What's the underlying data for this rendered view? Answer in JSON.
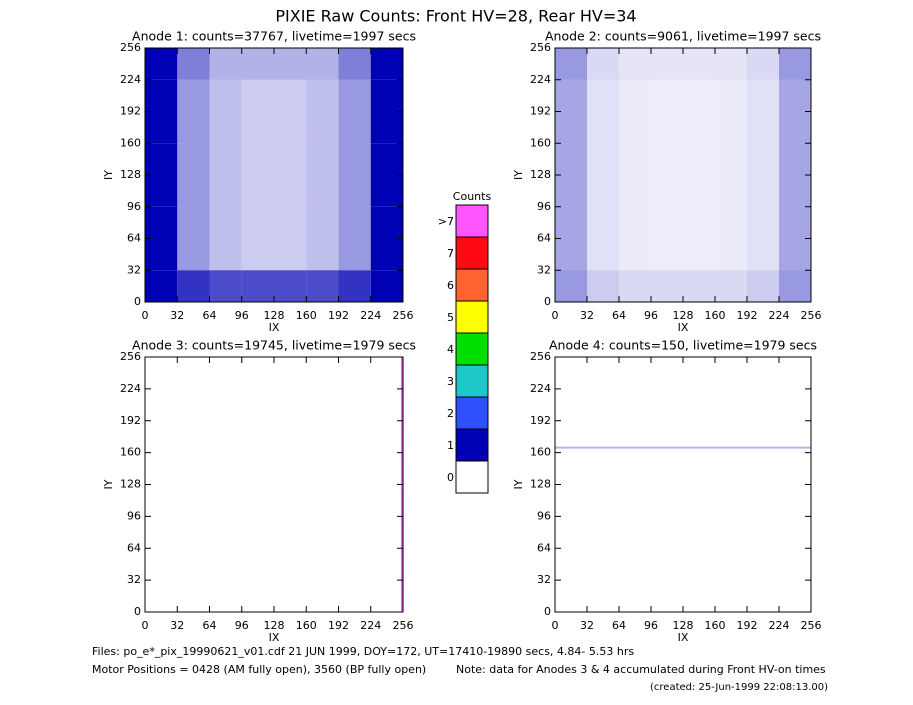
{
  "title": "PIXIE Raw Counts:  Front HV=28, Rear HV=34",
  "chart_data": [
    {
      "type": "heatmap",
      "title": "Anode 1: counts=37767, livetime=1997 secs",
      "x_label": "IX",
      "y_label": "IY",
      "xbins": [
        0,
        32,
        64,
        96,
        128,
        160,
        192,
        224,
        256
      ],
      "ybins": [
        0,
        32,
        64,
        96,
        128,
        160,
        192,
        224,
        256
      ],
      "values": [
        [
          1.5,
          0.8,
          0.7,
          0.7,
          0.7,
          0.7,
          0.8,
          1.5
        ],
        [
          1.2,
          0.4,
          0.25,
          0.2,
          0.2,
          0.25,
          0.4,
          1.2
        ],
        [
          1.2,
          0.4,
          0.25,
          0.2,
          0.2,
          0.25,
          0.4,
          1.2
        ],
        [
          1.2,
          0.4,
          0.25,
          0.2,
          0.2,
          0.25,
          0.4,
          1.2
        ],
        [
          1.2,
          0.4,
          0.25,
          0.2,
          0.2,
          0.25,
          0.4,
          1.2
        ],
        [
          1.2,
          0.4,
          0.25,
          0.2,
          0.2,
          0.25,
          0.4,
          1.2
        ],
        [
          1.2,
          0.4,
          0.25,
          0.2,
          0.2,
          0.25,
          0.4,
          1.2
        ],
        [
          1.3,
          0.5,
          0.3,
          0.3,
          0.3,
          0.3,
          0.5,
          1.3
        ]
      ],
      "xlim": [
        0,
        256
      ],
      "ylim": [
        0,
        256
      ],
      "xticks": [
        0,
        32,
        64,
        96,
        128,
        160,
        192,
        224,
        256
      ],
      "yticks": [
        0,
        32,
        64,
        96,
        128,
        160,
        192,
        224,
        256
      ]
    },
    {
      "type": "heatmap",
      "title": "Anode 2: counts=9061, livetime=1997 secs",
      "x_label": "IX",
      "y_label": "IY",
      "xbins": [
        0,
        32,
        64,
        96,
        128,
        160,
        192,
        224,
        256
      ],
      "ybins": [
        0,
        32,
        64,
        96,
        128,
        160,
        192,
        224,
        256
      ],
      "values": [
        [
          0.4,
          0.2,
          0.15,
          0.15,
          0.15,
          0.15,
          0.2,
          0.4
        ],
        [
          0.35,
          0.12,
          0.08,
          0.07,
          0.07,
          0.08,
          0.12,
          0.35
        ],
        [
          0.35,
          0.12,
          0.08,
          0.07,
          0.07,
          0.08,
          0.12,
          0.35
        ],
        [
          0.35,
          0.12,
          0.08,
          0.07,
          0.07,
          0.08,
          0.12,
          0.35
        ],
        [
          0.35,
          0.12,
          0.08,
          0.07,
          0.07,
          0.08,
          0.12,
          0.35
        ],
        [
          0.35,
          0.12,
          0.08,
          0.07,
          0.07,
          0.08,
          0.12,
          0.35
        ],
        [
          0.35,
          0.12,
          0.08,
          0.07,
          0.07,
          0.08,
          0.12,
          0.35
        ],
        [
          0.4,
          0.15,
          0.1,
          0.1,
          0.1,
          0.1,
          0.15,
          0.4
        ]
      ],
      "xlim": [
        0,
        256
      ],
      "ylim": [
        0,
        256
      ],
      "xticks": [
        0,
        32,
        64,
        96,
        128,
        160,
        192,
        224,
        256
      ],
      "yticks": [
        0,
        32,
        64,
        96,
        128,
        160,
        192,
        224,
        256
      ]
    },
    {
      "type": "heatmap",
      "title": "Anode 3: counts=19745, livetime=1979 secs",
      "x_label": "IX",
      "y_label": "IY",
      "xbins": [
        0,
        254,
        256
      ],
      "ybins": [
        0,
        256
      ],
      "values": [
        [
          0,
          38.6
        ]
      ],
      "xlim": [
        0,
        256
      ],
      "ylim": [
        0,
        256
      ],
      "xticks": [
        0,
        32,
        64,
        96,
        128,
        160,
        192,
        224,
        256
      ],
      "yticks": [
        0,
        32,
        64,
        96,
        128,
        160,
        192,
        224,
        256
      ]
    },
    {
      "type": "heatmap",
      "title": "Anode 4: counts=150, livetime=1979 secs",
      "x_label": "IX",
      "y_label": "IY",
      "xbins": [
        0,
        256
      ],
      "ybins": [
        0,
        164,
        166,
        256
      ],
      "values": [
        [
          0
        ],
        [
          0.29
        ],
        [
          0
        ]
      ],
      "xlim": [
        0,
        256
      ],
      "ylim": [
        0,
        256
      ],
      "xticks": [
        0,
        32,
        64,
        96,
        128,
        160,
        192,
        224,
        256
      ],
      "yticks": [
        0,
        32,
        64,
        96,
        128,
        160,
        192,
        224,
        256
      ]
    }
  ],
  "colorbar": {
    "title": "Counts",
    "labels": [
      "0",
      "1",
      "2",
      "3",
      "4",
      "5",
      "6",
      "7",
      ">7"
    ],
    "colors": [
      "#ffffff",
      "#0000b4",
      "#2f50ff",
      "#1ec8c8",
      "#00e000",
      "#ffff00",
      "#ff6430",
      "#ff0a14",
      "#ff55ff"
    ]
  },
  "footer": {
    "files": "Files: po_e*_pix_19990621_v01.cdf    21 JUN 1999, DOY=172, UT=17410-19890 secs,  4.84- 5.53 hrs",
    "motor": "Motor Positions = 0428 (AM fully open), 3560 (BP fully open)",
    "note": "Note: data for Anodes 3 & 4 accumulated during Front HV-on times",
    "created": "(created: 25-Jun-1999 22:08:13.00)"
  }
}
